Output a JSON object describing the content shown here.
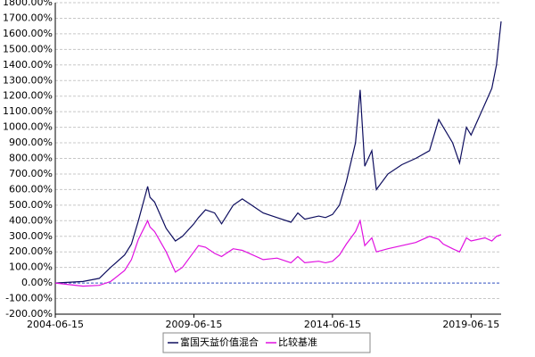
{
  "chart_data": {
    "type": "line",
    "x": [
      "2004-06-15",
      "2005-06-15",
      "2006-01-15",
      "2006-06-15",
      "2006-12-15",
      "2007-03-15",
      "2007-06-15",
      "2007-10-15",
      "2007-11-15",
      "2008-01-15",
      "2008-06-15",
      "2008-10-15",
      "2009-01-15",
      "2009-06-15",
      "2009-08-15",
      "2009-11-15",
      "2010-03-15",
      "2010-06-15",
      "2010-11-15",
      "2011-03-15",
      "2011-06-15",
      "2011-12-15",
      "2012-06-15",
      "2012-12-15",
      "2013-03-15",
      "2013-06-15",
      "2013-12-15",
      "2014-03-15",
      "2014-06-15",
      "2014-09-15",
      "2014-12-15",
      "2015-04-15",
      "2015-06-15",
      "2015-08-15",
      "2015-11-15",
      "2016-01-15",
      "2016-06-15",
      "2016-12-15",
      "2017-06-15",
      "2017-12-15",
      "2018-04-15",
      "2018-06-15",
      "2018-10-15",
      "2019-01-15",
      "2019-04-15",
      "2019-06-15",
      "2019-12-15",
      "2020-03-15",
      "2020-05-15",
      "2020-07-15"
    ],
    "series": [
      {
        "name": "富国天益价值混合",
        "color": "#0d0d5e",
        "values": [
          0,
          10,
          30,
          100,
          180,
          250,
          400,
          620,
          550,
          520,
          350,
          270,
          300,
          380,
          420,
          470,
          450,
          380,
          500,
          540,
          510,
          450,
          420,
          390,
          450,
          410,
          430,
          420,
          440,
          500,
          650,
          900,
          1240,
          750,
          850,
          600,
          700,
          760,
          800,
          850,
          1050,
          1000,
          900,
          770,
          1000,
          950,
          1150,
          1250,
          1400,
          1680
        ]
      },
      {
        "name": "比较基准",
        "color": "#e010e0",
        "values": [
          0,
          -20,
          -15,
          10,
          80,
          150,
          280,
          400,
          360,
          330,
          200,
          70,
          100,
          200,
          240,
          230,
          190,
          170,
          220,
          210,
          190,
          150,
          160,
          130,
          170,
          130,
          140,
          130,
          140,
          180,
          250,
          330,
          400,
          240,
          290,
          200,
          220,
          240,
          260,
          300,
          280,
          250,
          220,
          200,
          290,
          270,
          290,
          270,
          300,
          310
        ]
      }
    ],
    "xlim": [
      "2004-06-15",
      "2020-07-15"
    ],
    "xticks": [
      "2004-06-15",
      "2009-06-15",
      "2014-06-15",
      "2019-06-15"
    ],
    "ylim": [
      -200,
      1800
    ],
    "yticks": [
      {
        "value": -200,
        "label": "-200.00%"
      },
      {
        "value": -100,
        "label": "-100.00%"
      },
      {
        "value": 0,
        "label": "0.00%"
      },
      {
        "value": 100,
        "label": "100.00%"
      },
      {
        "value": 200,
        "label": "200.00%"
      },
      {
        "value": 300,
        "label": "300.00%"
      },
      {
        "value": 400,
        "label": "400.00%"
      },
      {
        "value": 500,
        "label": "500.00%"
      },
      {
        "value": 600,
        "label": "600.00%"
      },
      {
        "value": 700,
        "label": "700.00%"
      },
      {
        "value": 800,
        "label": "800.00%"
      },
      {
        "value": 900,
        "label": "900.00%"
      },
      {
        "value": 1000,
        "label": "1000.00%"
      },
      {
        "value": 1100,
        "label": "1100.00%"
      },
      {
        "value": 1200,
        "label": "1200.00%"
      },
      {
        "value": 1300,
        "label": "1300.00%"
      },
      {
        "value": 1400,
        "label": "1400.00%"
      },
      {
        "value": 1500,
        "label": "1500.00%"
      },
      {
        "value": 1600,
        "label": "1600.00%"
      },
      {
        "value": 1700,
        "label": "1700.00%"
      },
      {
        "value": 1800,
        "label": "1800.00%"
      }
    ],
    "grid": true,
    "legend": "bottom"
  }
}
